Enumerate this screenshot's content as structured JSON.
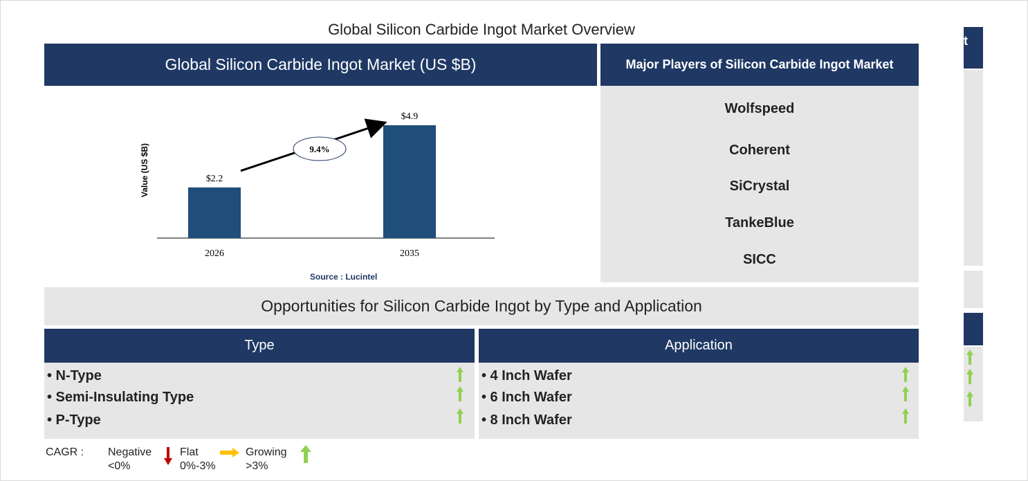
{
  "title": "Global Silicon Carbide Ingot Market Overview",
  "chart_panel": {
    "header": "Global Silicon Carbide Ingot Market (US $B)",
    "source": "Source : Lucintel"
  },
  "chart_data": {
    "type": "bar",
    "categories": [
      "2026",
      "2035"
    ],
    "values": [
      2.2,
      4.9
    ],
    "data_labels": [
      "$2.2",
      "$4.9"
    ],
    "ylabel": "Value (US $B)",
    "cagr_label": "9.4%",
    "bar_color": "#1f4e79",
    "ylim": [
      0,
      4.9
    ]
  },
  "players_panel": {
    "header": "Major Players of Silicon Carbide Ingot Market",
    "players": [
      "Wolfspeed",
      "Coherent",
      "SiCrystal",
      "TankeBlue",
      "SICC"
    ]
  },
  "opportunities": {
    "title": "Opportunities for Silicon Carbide Ingot by Type and Application",
    "type": {
      "header": "Type",
      "items": [
        "• N-Type",
        "• Semi-Insulating Type",
        "• P-Type"
      ]
    },
    "application": {
      "header": "Application",
      "items": [
        "• 4 Inch Wafer",
        "• 6 Inch Wafer",
        "• 8 Inch Wafer"
      ]
    }
  },
  "legend": {
    "cagr": "CAGR :",
    "negative": "Negative",
    "negative_range": "<0%",
    "flat": "Flat",
    "flat_range": "0%-3%",
    "growing": "Growing",
    "growing_range": ">3%"
  },
  "side_panel": {
    "header_fragment": "t"
  },
  "colors": {
    "navy": "#1f3864",
    "bar": "#1f4e79",
    "panel_grey": "#e6e6e6",
    "growing_arrow": "#92d050",
    "negative_arrow": "#c00000",
    "flat_arrow": "#ffc000",
    "source_text": "#1f3864"
  }
}
